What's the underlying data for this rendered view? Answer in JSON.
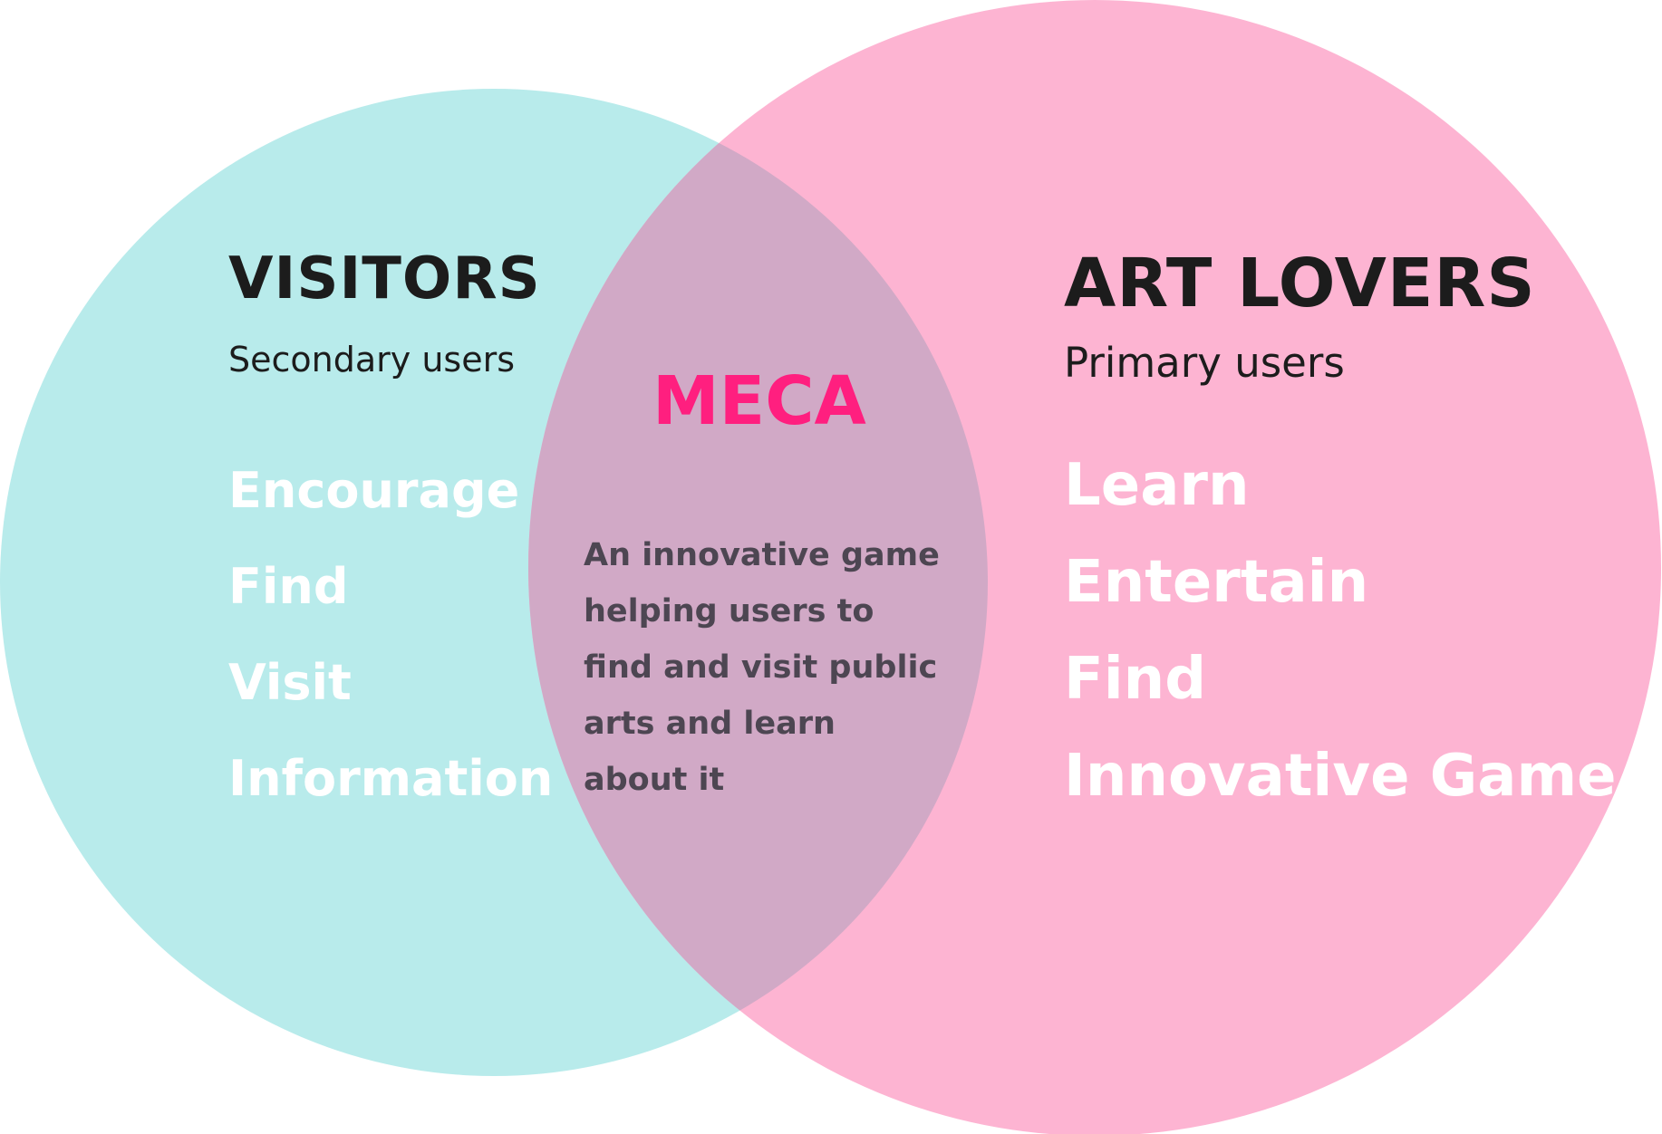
{
  "diagram": {
    "type": "venn",
    "colors": {
      "left_circle": "#b8ebeb",
      "right_circle": "#fdb4d2",
      "overlap": "#d1a9c6",
      "accent": "#ff1f7f",
      "heading_text": "#1c1c1c",
      "list_text": "#ffffff",
      "overlap_text": "#4d4652"
    },
    "left": {
      "title": "VISITORS",
      "subtitle": "Secondary users",
      "items": [
        "Encourage",
        "Find",
        "Visit",
        "Information"
      ]
    },
    "right": {
      "title": "ART LOVERS",
      "subtitle": "Primary users",
      "items": [
        "Learn",
        "Entertain",
        "Find",
        "Innovative Game"
      ]
    },
    "overlap": {
      "title": "MECA",
      "description": "An innovative game helping users to find and visit public arts and learn about it"
    }
  }
}
